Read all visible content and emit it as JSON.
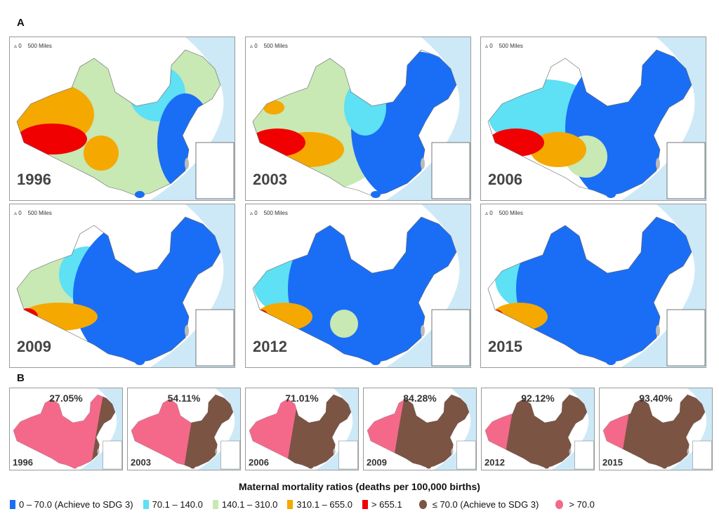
{
  "sections": {
    "a": "A",
    "b": "B"
  },
  "scale": {
    "zero": "0",
    "dist": "500 Miles",
    "north": "N"
  },
  "panels_a": [
    {
      "year": "1996"
    },
    {
      "year": "2003"
    },
    {
      "year": "2006"
    },
    {
      "year": "2009"
    },
    {
      "year": "2012"
    },
    {
      "year": "2015"
    }
  ],
  "panels_b": [
    {
      "year": "1996",
      "pct": "27.05%",
      "share": 27.05
    },
    {
      "year": "2003",
      "pct": "54.11%",
      "share": 54.11
    },
    {
      "year": "2006",
      "pct": "71.01%",
      "share": 71.01
    },
    {
      "year": "2009",
      "pct": "84.28%",
      "share": 84.28
    },
    {
      "year": "2012",
      "pct": "92.12%",
      "share": 92.12
    },
    {
      "year": "2015",
      "pct": "93.40%",
      "share": 93.4
    }
  ],
  "legend": {
    "title": "Maternal mortality ratios (deaths per 100,000 births)",
    "items": [
      {
        "label": "0 – 70.0 (Achieve to SDG 3)",
        "color": "#1a6ef5"
      },
      {
        "label": "70.1 – 140.0",
        "color": "#5ee0f5"
      },
      {
        "label": "140.1 – 310.0",
        "color": "#c8e8b4"
      },
      {
        "label": "310.1 – 655.0",
        "color": "#f5a800"
      },
      {
        "label": "> 655.1",
        "color": "#f00000"
      }
    ],
    "binary": [
      {
        "label": "≤ 70.0 (Achieve to SDG 3)",
        "color": "#7b5444"
      },
      {
        "label": "> 70.0",
        "color": "#f4698a"
      }
    ]
  }
}
